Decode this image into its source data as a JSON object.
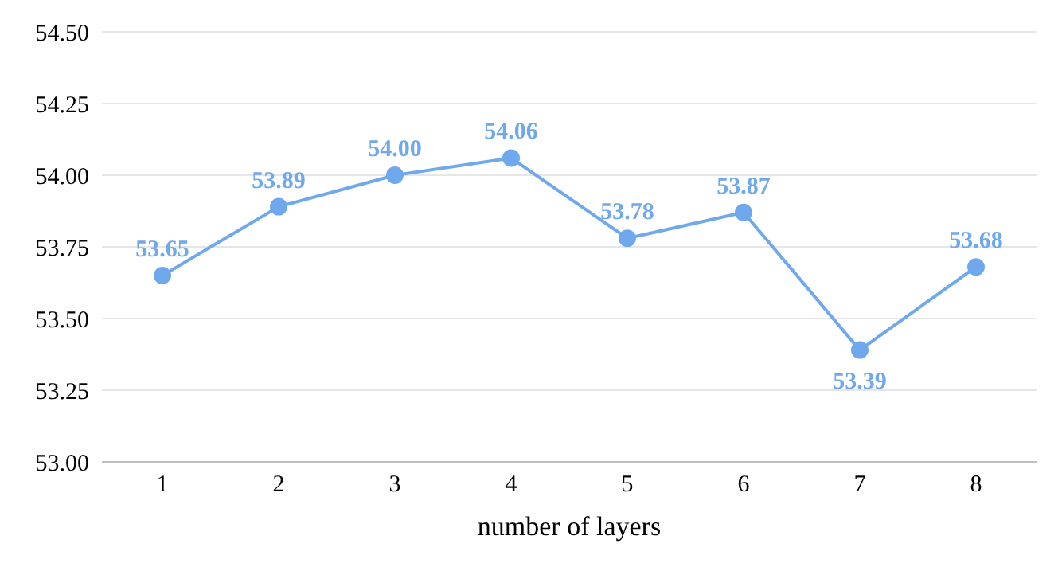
{
  "chart_data": {
    "type": "line",
    "xlabel": "number of layers",
    "categories": [
      "1",
      "2",
      "3",
      "4",
      "5",
      "6",
      "7",
      "8"
    ],
    "series": [
      {
        "color": "#6fa8ec",
        "values": [
          53.65,
          53.89,
          54.0,
          54.06,
          53.78,
          53.87,
          53.39,
          53.68
        ],
        "value_labels": [
          "53.65",
          "53.89",
          "54.00",
          "54.06",
          "53.78",
          "53.87",
          "53.39",
          "53.68"
        ]
      }
    ],
    "ylim": [
      53,
      54.5
    ],
    "yticks": [
      {
        "value": 53,
        "label": "53.00"
      },
      {
        "value": 53.25,
        "label": "53.25"
      },
      {
        "value": 53.5,
        "label": "53.50"
      },
      {
        "value": 53.75,
        "label": "53.75"
      },
      {
        "value": 54,
        "label": "54.00"
      },
      {
        "value": 54.25,
        "label": "54.25"
      },
      {
        "value": 54.5,
        "label": "54.50"
      }
    ],
    "grid": "y",
    "marker": "circle",
    "line_style": "solid",
    "legend": false
  }
}
